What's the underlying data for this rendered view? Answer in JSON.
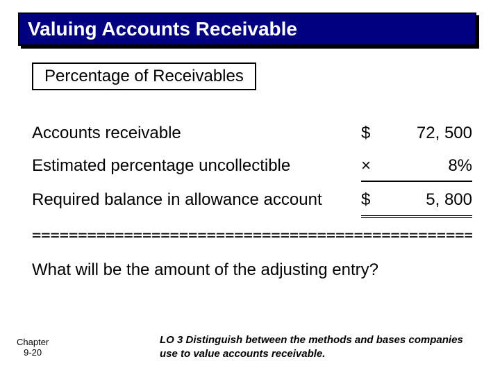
{
  "title": "Valuing Accounts Receivable",
  "subtitle": "Percentage of Receivables",
  "colors": {
    "banner_bg": "#000080",
    "banner_text": "#ffffff",
    "page_bg": "#ffffff",
    "text": "#000000"
  },
  "typography": {
    "body_font": "Comic Sans MS",
    "body_size_pt": 18,
    "title_size_pt": 21,
    "footer_font": "Arial",
    "footer_size_pt": 11
  },
  "calc": {
    "rows": [
      {
        "label": "Accounts receivable",
        "symbol": "$",
        "value": "72, 500",
        "style": "none"
      },
      {
        "label": "Estimated percentage uncollectible",
        "symbol": "×",
        "value": "8%",
        "style": "single"
      },
      {
        "label": "Required balance in allowance account",
        "symbol": "$",
        "value": "5, 800",
        "style": "double"
      }
    ]
  },
  "divider": "==================================================",
  "question": "What will be the amount of the adjusting entry?",
  "footer": {
    "chapter_label": "Chapter",
    "chapter_num": "9-20",
    "lo": "LO 3  Distinguish between the methods and bases companies use to value accounts receivable."
  }
}
